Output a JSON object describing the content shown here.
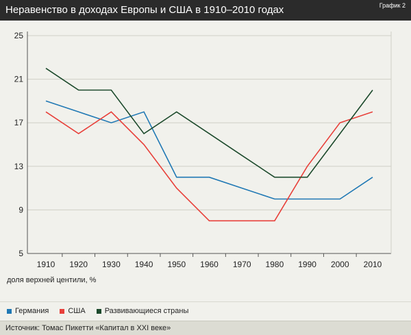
{
  "header": {
    "title": "Неравенство в доходах Европы и США в 1910–2010 годах",
    "tag": "График 2"
  },
  "axis_note": "доля верхней центили, %",
  "source": "Источник: Томас Пикетти «Капитал в XXI веке»",
  "chart_data": {
    "type": "line",
    "x": [
      1910,
      1920,
      1930,
      1940,
      1950,
      1960,
      1970,
      1980,
      1990,
      2000,
      2010
    ],
    "series": [
      {
        "name": "Германия",
        "color": "#1f78b4",
        "values": [
          19,
          18,
          17,
          18,
          12,
          12,
          11,
          10,
          10,
          10,
          12
        ]
      },
      {
        "name": "США",
        "color": "#e8403a",
        "values": [
          18,
          16,
          18,
          15,
          11,
          8,
          8,
          8,
          13,
          17,
          18
        ]
      },
      {
        "name": "Развивающиеся страны",
        "color": "#1c4a2c",
        "values": [
          22,
          20,
          20,
          16,
          18,
          16,
          14,
          12,
          12,
          16,
          20
        ]
      }
    ],
    "xticks": [
      1910,
      1920,
      1930,
      1940,
      1950,
      1960,
      1970,
      1980,
      1990,
      2000,
      2010
    ],
    "yticks": [
      5,
      9,
      13,
      17,
      21,
      25
    ],
    "xlim": [
      1910,
      2010
    ],
    "ylim": [
      5,
      25
    ],
    "grid": "horizontal",
    "legend": "bottom"
  }
}
